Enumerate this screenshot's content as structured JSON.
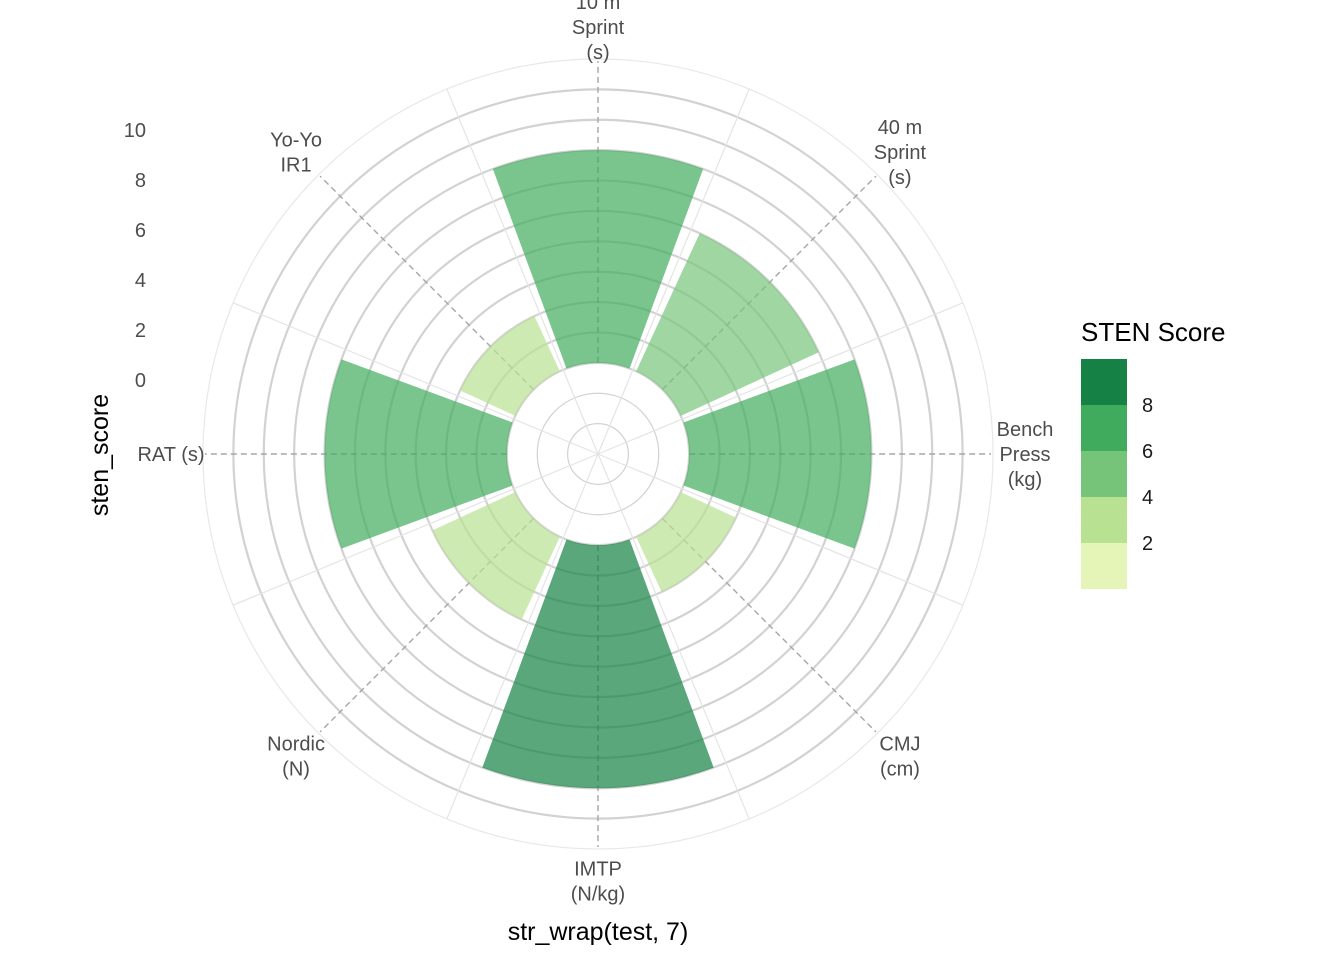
{
  "chart_data": {
    "type": "bar",
    "subtype": "polar-bar (coord_polar)",
    "title": "",
    "xlabel": "str_wrap(test, 7)",
    "ylabel": "sten_score",
    "categories": [
      "10 m\nSprint\n(s)",
      "40 m\nSprint\n(s)",
      "Bench\nPress\n(kg)",
      "CMJ\n(cm)",
      "IMTP\n(N/kg)",
      "Nordic\n(N)",
      "RAT (s)",
      "Yo-Yo\nIR1"
    ],
    "values": [
      7,
      5,
      6,
      2,
      8,
      3,
      6,
      2
    ],
    "y_ticks": [
      "0",
      "2",
      "4",
      "6",
      "8",
      "10"
    ],
    "ylim": [
      -3,
      10
    ],
    "legend": {
      "title": "STEN Score",
      "placement": "right",
      "scale_min": 0,
      "scale_max": 10,
      "labels": [
        "2",
        "4",
        "6",
        "8"
      ],
      "colors": [
        "#e5f5b8",
        "#b8e192",
        "#76c47a",
        "#41ab5d",
        "#168145"
      ]
    },
    "bar_alpha": 0.7,
    "grid": true
  }
}
